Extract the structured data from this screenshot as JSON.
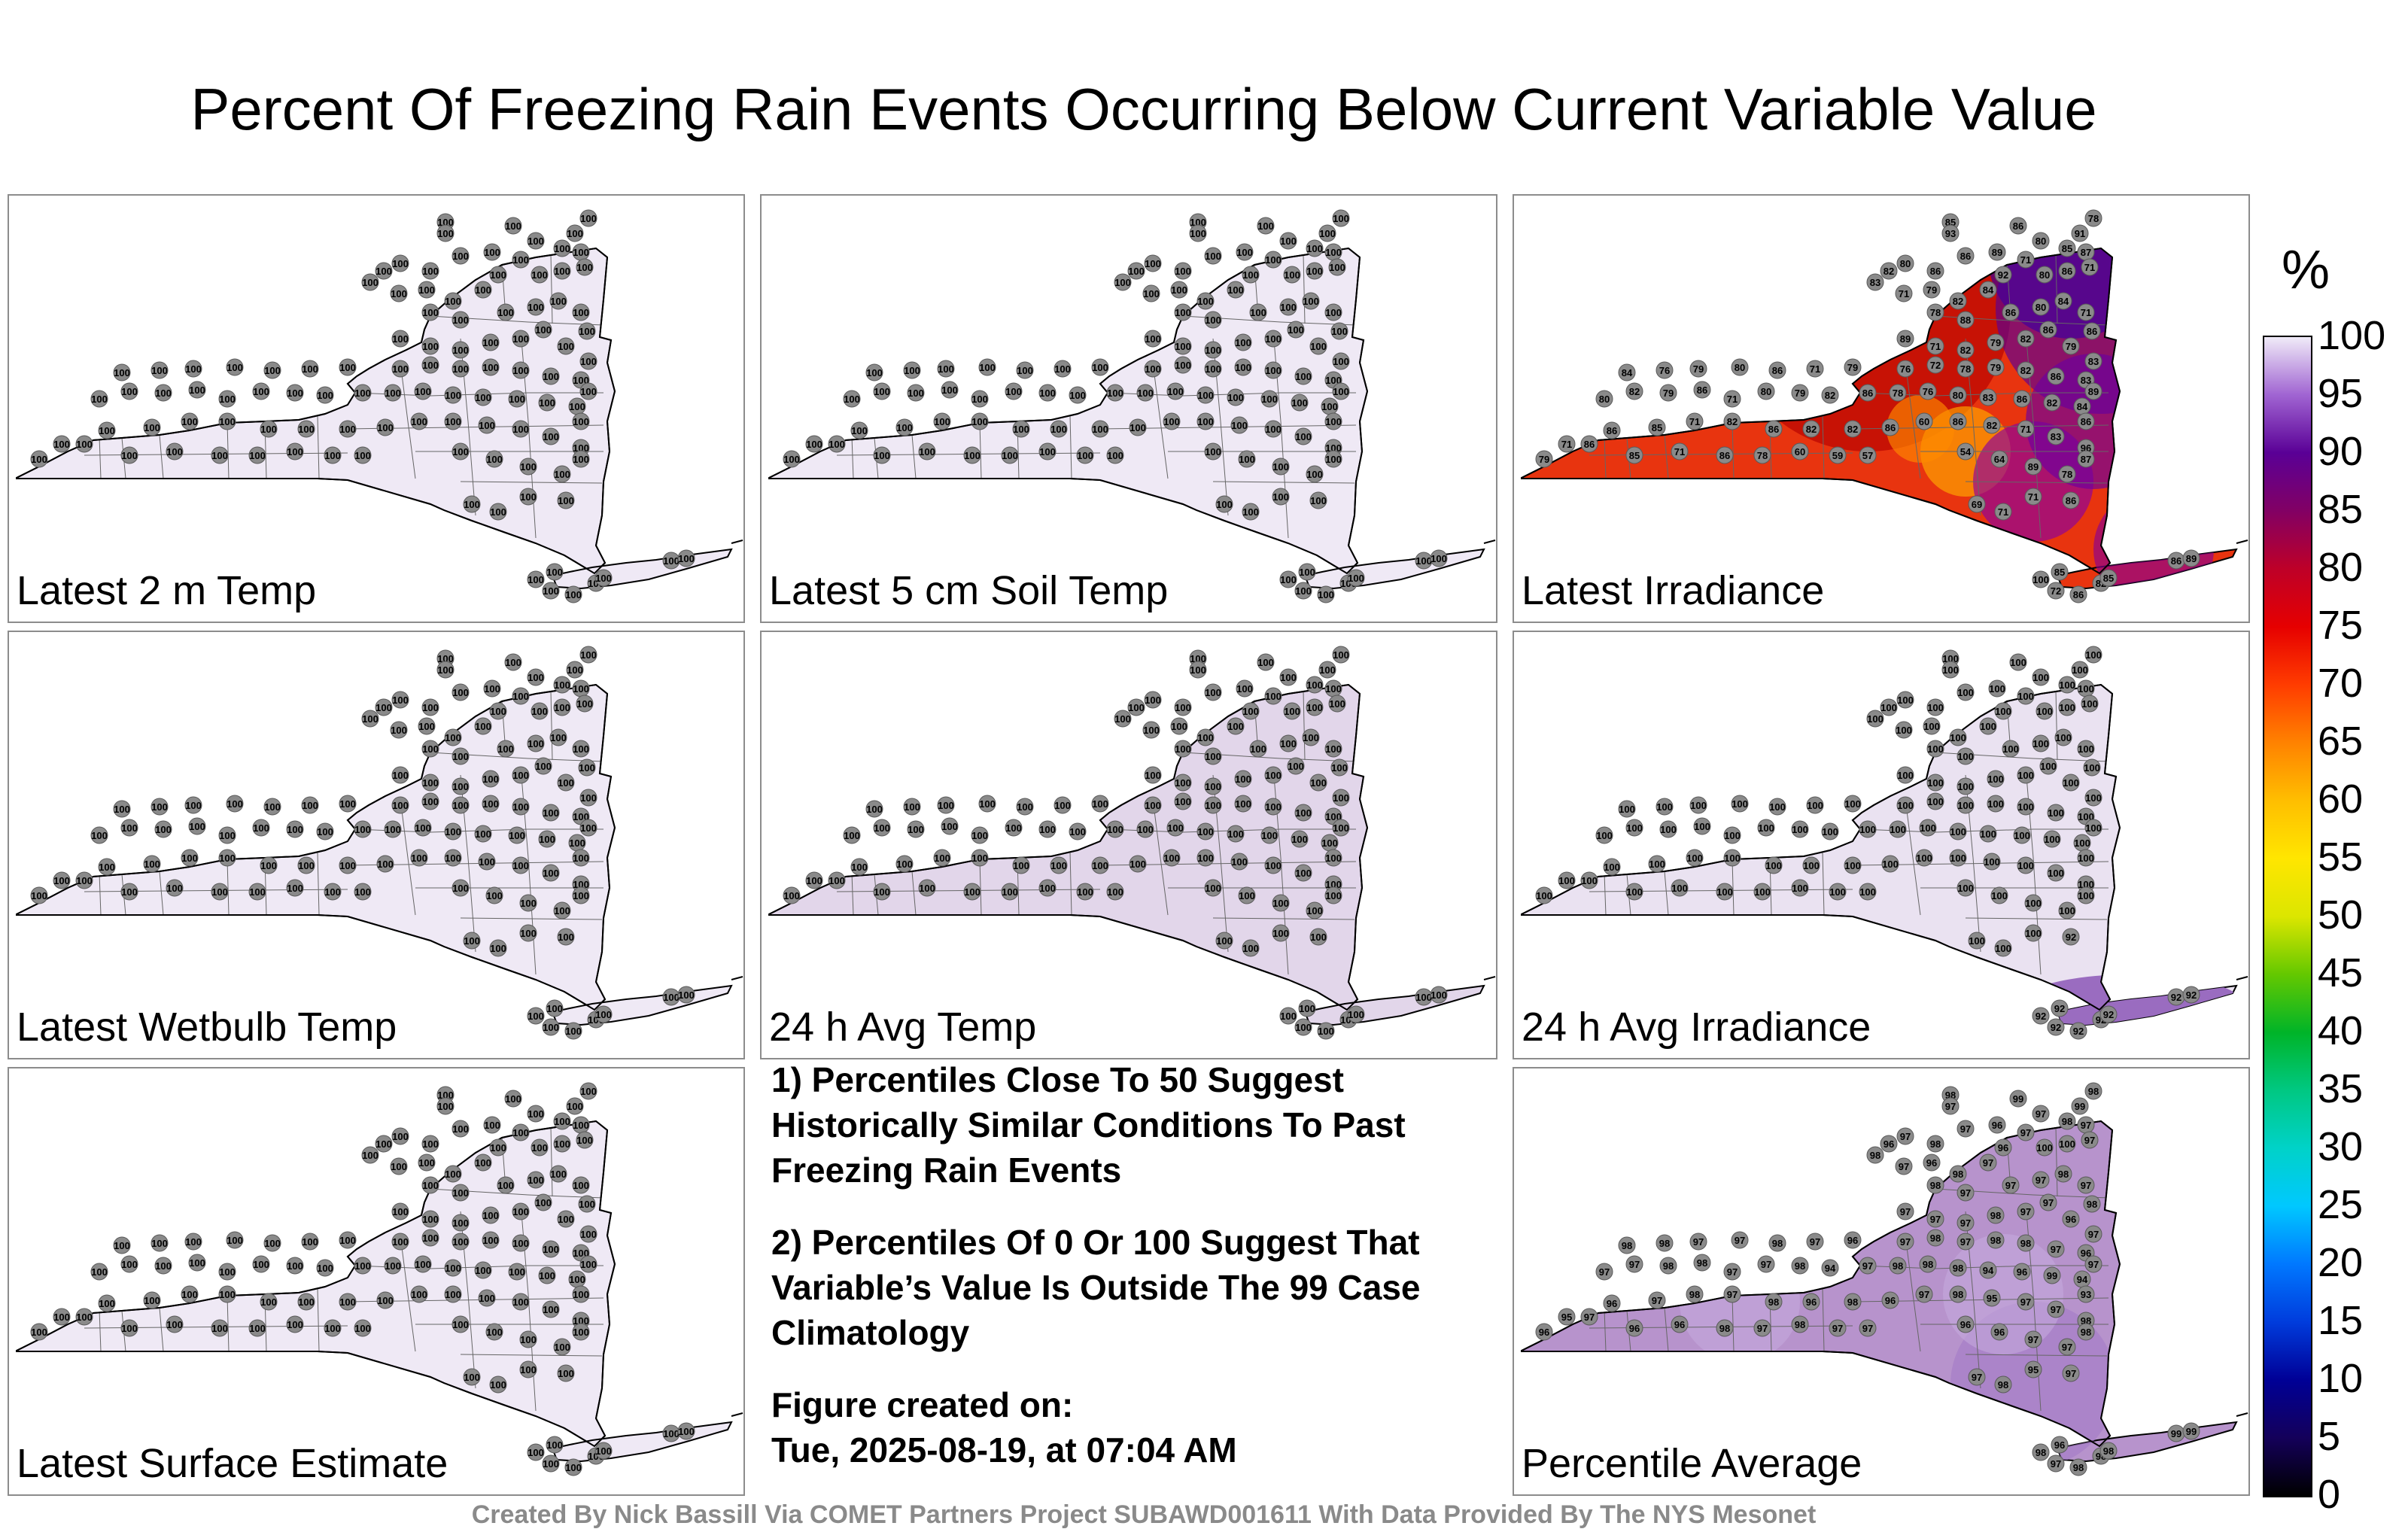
{
  "title": "Percent Of Freezing Rain Events Occurring Below Current Variable Value",
  "footer": "Created By Nick Bassill Via COMET Partners Project SUBAWD001611 With Data Provided By The NYS Mesonet",
  "notes": {
    "note1": "1) Percentiles Close To 50 Suggest Historically Similar Conditions To Past Freezing Rain Events",
    "note2": "2) Percentiles Of 0 Or 100 Suggest That Variable’s Value Is Outside The 99 Case Climatology",
    "created_label": "Figure created on:",
    "created_value": "Tue, 2025-08-19, at 07:04 AM"
  },
  "colorbar": {
    "unit": "%",
    "ticks": [
      100,
      95,
      90,
      85,
      80,
      75,
      70,
      65,
      60,
      55,
      50,
      45,
      40,
      35,
      30,
      25,
      20,
      15,
      10,
      5,
      0
    ]
  },
  "panels": [
    {
      "label": "Latest 2 m Temp",
      "fill": "#efe9f5",
      "mode": "uniform",
      "value": 100
    },
    {
      "label": "Latest 5 cm Soil Temp",
      "fill": "#efe9f5",
      "mode": "uniform",
      "value": 100
    },
    {
      "label": "Latest Irradiance",
      "fill": "#e8340f",
      "mode": "irradiance",
      "values": [
        85,
        86,
        91,
        93,
        78,
        83,
        82,
        80,
        86,
        86,
        89,
        71,
        80,
        85,
        87,
        71,
        79,
        82,
        84,
        92,
        80,
        86,
        71,
        78,
        88,
        86,
        80,
        84,
        71,
        86,
        89,
        71,
        82,
        79,
        82,
        86,
        79,
        83,
        84,
        76,
        79,
        80,
        86,
        71,
        79,
        76,
        72,
        78,
        79,
        82,
        86,
        83,
        89,
        80,
        82,
        79,
        86,
        71,
        80,
        79,
        82,
        86,
        78,
        76,
        80,
        83,
        86,
        82,
        84,
        86,
        71,
        86,
        85,
        71,
        82,
        86,
        82,
        82,
        86,
        60,
        86,
        82,
        71,
        83,
        96,
        79,
        86,
        85,
        71,
        86,
        78,
        60,
        59,
        57,
        54,
        64,
        89,
        78,
        87,
        69,
        71,
        71,
        86,
        100,
        85,
        72,
        86,
        82,
        85,
        86,
        89
      ]
    },
    {
      "label": "Latest Wetbulb Temp",
      "fill": "#efe9f5",
      "mode": "uniform",
      "value": 100
    },
    {
      "label": "24 h Avg Temp",
      "fill": "#e2d6ea",
      "mode": "uniform",
      "value": 100
    },
    {
      "label": "24 h Avg Irradiance",
      "fill": "#eae2f1",
      "mode": "avgirr",
      "value": 100,
      "li_values": [
        92,
        92,
        92,
        92,
        92,
        92,
        92
      ]
    },
    {
      "label": "Latest Surface Estimate",
      "fill": "#efe9f5",
      "mode": "uniform",
      "value": 100
    },
    {
      "label": "Percentile Average",
      "fill": "#b793cc",
      "mode": "average",
      "values": [
        98,
        99,
        99,
        97,
        98,
        98,
        96,
        97,
        98,
        97,
        96,
        97,
        97,
        98,
        97,
        97,
        96,
        98,
        97,
        96,
        100,
        100,
        97,
        98,
        97,
        97,
        97,
        98,
        97,
        98,
        97,
        97,
        97,
        98,
        97,
        97,
        96,
        97,
        98,
        98,
        97,
        97,
        98,
        97,
        96,
        97,
        98,
        97,
        98,
        98,
        97,
        96,
        97,
        97,
        97,
        98,
        98,
        97,
        97,
        98,
        94,
        97,
        98,
        98,
        98,
        94,
        96,
        99,
        94,
        93,
        95,
        96,
        97,
        98,
        97,
        98,
        96,
        98,
        96,
        97,
        98,
        95,
        97,
        97,
        98,
        96,
        97,
        96,
        96,
        98,
        97,
        98,
        97,
        97,
        96,
        96,
        97,
        97,
        98,
        97,
        98,
        95,
        97,
        98,
        96,
        97,
        98,
        98
      ]
    }
  ]
}
